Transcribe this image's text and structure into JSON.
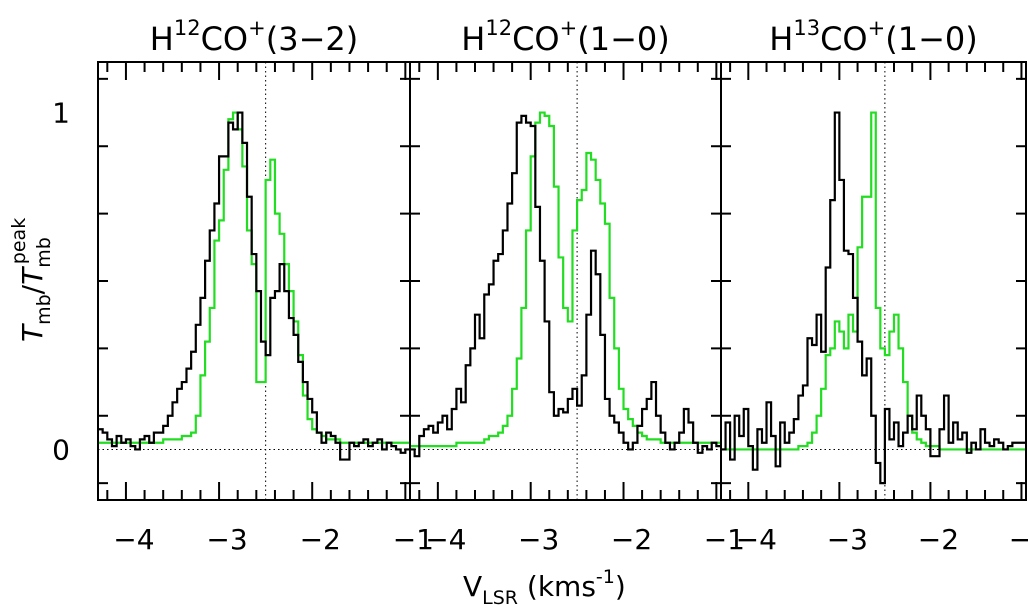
{
  "xlabel": {
    "base": "V",
    "sub": "LSR",
    "mid": " (kms",
    "sup": "-1",
    "end": ")"
  },
  "ylabel": {
    "t1": "T",
    "s1": "mb",
    "slash": "/",
    "t2": "T",
    "s2": "mb",
    "sup2": "peak"
  },
  "colors": {
    "observed": "#000000",
    "model": "#22dd22"
  },
  "chart_data": [
    {
      "type": "line",
      "panel_title": {
        "pre": "H",
        "iso": "12",
        "mol": "CO",
        "charge": "+",
        "transition": "(3−2)"
      },
      "xlim": [
        -4.3,
        -0.95
      ],
      "ylim": [
        -0.15,
        1.15
      ],
      "x_ticks": [
        "−4",
        "−3",
        "−2",
        "−1"
      ],
      "x_tick_values": [
        -4,
        -3,
        -2,
        -1
      ],
      "y_ticks": [
        "0",
        "1"
      ],
      "y_tick_values": [
        0,
        1
      ],
      "vline": -2.5,
      "hline": 0,
      "series": [
        {
          "style": "observed-step",
          "x": [
            -4.3,
            -4.25,
            -4.2,
            -4.15,
            -4.1,
            -4.05,
            -4.0,
            -3.95,
            -3.9,
            -3.85,
            -3.8,
            -3.75,
            -3.7,
            -3.65,
            -3.6,
            -3.55,
            -3.5,
            -3.45,
            -3.4,
            -3.35,
            -3.3,
            -3.25,
            -3.2,
            -3.15,
            -3.1,
            -3.05,
            -3.0,
            -2.95,
            -2.9,
            -2.85,
            -2.8,
            -2.75,
            -2.7,
            -2.65,
            -2.6,
            -2.55,
            -2.5,
            -2.45,
            -2.4,
            -2.35,
            -2.3,
            -2.25,
            -2.2,
            -2.15,
            -2.1,
            -2.05,
            -2.0,
            -1.95,
            -1.9,
            -1.85,
            -1.8,
            -1.75,
            -1.7,
            -1.65,
            -1.6,
            -1.55,
            -1.5,
            -1.45,
            -1.4,
            -1.35,
            -1.3,
            -1.25,
            -1.2,
            -1.15,
            -1.1,
            -1.05,
            -1.0
          ],
          "y": [
            0.06,
            0.05,
            0.03,
            0.01,
            0.04,
            0.02,
            0.03,
            0.01,
            0.0,
            0.03,
            0.04,
            0.02,
            0.05,
            0.05,
            0.07,
            0.1,
            0.14,
            0.18,
            0.2,
            0.24,
            0.29,
            0.37,
            0.45,
            0.56,
            0.65,
            0.73,
            0.87,
            0.87,
            0.97,
            0.95,
            1.0,
            0.91,
            0.75,
            0.58,
            0.47,
            0.32,
            0.28,
            0.45,
            0.47,
            0.55,
            0.47,
            0.39,
            0.34,
            0.26,
            0.2,
            0.15,
            0.11,
            0.05,
            0.02,
            0.05,
            0.04,
            0.02,
            -0.03,
            -0.03,
            0.02,
            0.01,
            0.02,
            0.03,
            0.01,
            0.02,
            0.03,
            0.0,
            0.02,
            0.01,
            0.0,
            -0.01,
            0.0
          ]
        },
        {
          "style": "model-step",
          "x": [
            -4.3,
            -4.2,
            -4.1,
            -4.0,
            -3.9,
            -3.8,
            -3.7,
            -3.6,
            -3.5,
            -3.45,
            -3.4,
            -3.35,
            -3.3,
            -3.25,
            -3.2,
            -3.15,
            -3.1,
            -3.05,
            -3.0,
            -2.95,
            -2.9,
            -2.85,
            -2.8,
            -2.75,
            -2.7,
            -2.65,
            -2.6,
            -2.55,
            -2.5,
            -2.45,
            -2.4,
            -2.35,
            -2.3,
            -2.25,
            -2.2,
            -2.15,
            -2.1,
            -2.05,
            -2.0,
            -1.95,
            -1.9,
            -1.85,
            -1.8,
            -1.7,
            -1.6,
            -1.5,
            -1.4,
            -1.3,
            -1.2,
            -1.1,
            -1.0
          ],
          "y": [
            0.02,
            0.02,
            0.02,
            0.02,
            0.02,
            0.02,
            0.02,
            0.03,
            0.03,
            0.03,
            0.04,
            0.04,
            0.05,
            0.1,
            0.22,
            0.32,
            0.42,
            0.62,
            0.68,
            0.83,
            0.98,
            1.0,
            0.95,
            0.84,
            0.65,
            0.55,
            0.2,
            0.2,
            0.8,
            0.86,
            0.7,
            0.64,
            0.55,
            0.47,
            0.38,
            0.28,
            0.16,
            0.09,
            0.06,
            0.05,
            0.04,
            0.03,
            0.03,
            0.02,
            0.02,
            0.02,
            0.02,
            0.02,
            0.02,
            0.02,
            0.02
          ]
        }
      ]
    },
    {
      "type": "line",
      "panel_title": {
        "pre": "H",
        "iso": "12",
        "mol": "CO",
        "charge": "+",
        "transition": "(1−0)"
      },
      "xlim": [
        -4.3,
        -0.95
      ],
      "ylim": [
        -0.15,
        1.15
      ],
      "x_ticks": [
        "−4",
        "−3",
        "−2",
        "−1"
      ],
      "x_tick_values": [
        -4,
        -3,
        -2,
        -1
      ],
      "y_ticks": [],
      "y_tick_values": [
        0,
        1
      ],
      "vline": -2.5,
      "hline": 0,
      "series": [
        {
          "style": "observed-step",
          "x": [
            -4.3,
            -4.25,
            -4.2,
            -4.15,
            -4.1,
            -4.05,
            -4.0,
            -3.95,
            -3.9,
            -3.85,
            -3.8,
            -3.75,
            -3.7,
            -3.65,
            -3.6,
            -3.55,
            -3.5,
            -3.45,
            -3.4,
            -3.35,
            -3.3,
            -3.25,
            -3.2,
            -3.15,
            -3.1,
            -3.05,
            -3.0,
            -2.95,
            -2.9,
            -2.85,
            -2.8,
            -2.75,
            -2.7,
            -2.65,
            -2.6,
            -2.55,
            -2.5,
            -2.45,
            -2.4,
            -2.35,
            -2.3,
            -2.25,
            -2.2,
            -2.15,
            -2.1,
            -2.05,
            -2.0,
            -1.95,
            -1.9,
            -1.85,
            -1.8,
            -1.75,
            -1.7,
            -1.65,
            -1.6,
            -1.55,
            -1.5,
            -1.45,
            -1.4,
            -1.35,
            -1.3,
            -1.25,
            -1.2,
            -1.15,
            -1.1,
            -1.05,
            -1.0
          ],
          "y": [
            0.0,
            -0.02,
            0.04,
            0.06,
            0.07,
            0.05,
            0.08,
            0.1,
            0.06,
            0.12,
            0.18,
            0.14,
            0.25,
            0.3,
            0.4,
            0.33,
            0.46,
            0.49,
            0.56,
            0.58,
            0.65,
            0.73,
            0.82,
            0.97,
            0.99,
            0.97,
            0.96,
            0.72,
            0.56,
            0.38,
            0.17,
            0.1,
            0.12,
            0.11,
            0.15,
            0.18,
            0.13,
            0.22,
            0.4,
            0.59,
            0.52,
            0.34,
            0.15,
            0.1,
            0.08,
            0.05,
            0.02,
            0.0,
            0.02,
            0.07,
            0.12,
            0.15,
            0.2,
            0.1,
            0.05,
            0.02,
            0.0,
            0.02,
            0.05,
            0.12,
            0.08,
            0.02,
            -0.01,
            0.01,
            0.0,
            0.02,
            0.01
          ]
        },
        {
          "style": "model-step",
          "x": [
            -4.3,
            -4.2,
            -4.1,
            -4.0,
            -3.9,
            -3.8,
            -3.7,
            -3.6,
            -3.5,
            -3.45,
            -3.4,
            -3.35,
            -3.3,
            -3.25,
            -3.2,
            -3.15,
            -3.1,
            -3.05,
            -3.0,
            -2.95,
            -2.9,
            -2.85,
            -2.8,
            -2.75,
            -2.7,
            -2.65,
            -2.6,
            -2.55,
            -2.5,
            -2.45,
            -2.4,
            -2.35,
            -2.3,
            -2.25,
            -2.2,
            -2.15,
            -2.1,
            -2.05,
            -2.0,
            -1.95,
            -1.9,
            -1.85,
            -1.8,
            -1.75,
            -1.7,
            -1.6,
            -1.5,
            -1.4,
            -1.3,
            -1.2,
            -1.1,
            -1.0
          ],
          "y": [
            0.01,
            0.01,
            0.01,
            0.01,
            0.01,
            0.02,
            0.02,
            0.02,
            0.03,
            0.04,
            0.04,
            0.05,
            0.07,
            0.1,
            0.18,
            0.27,
            0.42,
            0.65,
            0.87,
            0.97,
            1.0,
            0.99,
            0.96,
            0.78,
            0.57,
            0.42,
            0.38,
            0.65,
            0.74,
            0.77,
            0.88,
            0.86,
            0.8,
            0.73,
            0.67,
            0.45,
            0.3,
            0.18,
            0.12,
            0.09,
            0.07,
            0.05,
            0.04,
            0.03,
            0.03,
            0.02,
            0.02,
            0.02,
            0.02,
            0.02,
            0.02,
            0.02
          ]
        }
      ]
    },
    {
      "type": "line",
      "panel_title": {
        "pre": "H",
        "iso": "13",
        "mol": "CO",
        "charge": "+",
        "transition": "(1−0)"
      },
      "xlim": [
        -4.3,
        -0.95
      ],
      "ylim": [
        -0.15,
        1.15
      ],
      "x_ticks": [
        "−4",
        "−3",
        "−2",
        "−1"
      ],
      "x_tick_values": [
        -4,
        -3,
        -2,
        -1
      ],
      "y_ticks": [],
      "y_tick_values": [
        0,
        1
      ],
      "vline": -2.5,
      "hline": 0,
      "series": [
        {
          "style": "observed-step",
          "x": [
            -4.3,
            -4.25,
            -4.2,
            -4.15,
            -4.1,
            -4.05,
            -4.0,
            -3.95,
            -3.9,
            -3.85,
            -3.8,
            -3.75,
            -3.7,
            -3.65,
            -3.6,
            -3.55,
            -3.5,
            -3.45,
            -3.4,
            -3.35,
            -3.3,
            -3.25,
            -3.2,
            -3.15,
            -3.1,
            -3.05,
            -3.0,
            -2.95,
            -2.9,
            -2.85,
            -2.8,
            -2.75,
            -2.7,
            -2.65,
            -2.6,
            -2.55,
            -2.5,
            -2.45,
            -2.4,
            -2.35,
            -2.3,
            -2.25,
            -2.2,
            -2.15,
            -2.1,
            -2.05,
            -2.0,
            -1.95,
            -1.9,
            -1.85,
            -1.8,
            -1.75,
            -1.7,
            -1.65,
            -1.6,
            -1.55,
            -1.5,
            -1.45,
            -1.4,
            -1.35,
            -1.3,
            -1.25,
            -1.2,
            -1.15,
            -1.1,
            -1.05,
            -1.0
          ],
          "y": [
            0.0,
            0.08,
            -0.03,
            0.1,
            0.04,
            0.12,
            0.01,
            -0.06,
            0.06,
            0.02,
            0.14,
            0.04,
            -0.05,
            0.08,
            0.02,
            0.05,
            0.09,
            0.16,
            0.19,
            0.33,
            0.31,
            0.4,
            0.29,
            0.54,
            0.74,
            1.0,
            0.8,
            0.59,
            0.58,
            0.45,
            0.32,
            0.22,
            0.27,
            0.1,
            -0.04,
            -0.1,
            0.12,
            0.03,
            0.08,
            0.01,
            0.05,
            0.1,
            0.06,
            0.16,
            0.1,
            0.06,
            -0.02,
            -0.02,
            0.06,
            0.16,
            0.02,
            0.08,
            0.03,
            0.05,
            -0.01,
            0.02,
            0.0,
            0.06,
            0.02,
            0.01,
            0.03,
            0.02,
            0.0,
            0.01,
            0.02,
            0.02,
            0.02
          ]
        },
        {
          "style": "model-step",
          "x": [
            -4.3,
            -4.2,
            -4.1,
            -4.0,
            -3.9,
            -3.8,
            -3.7,
            -3.6,
            -3.5,
            -3.45,
            -3.4,
            -3.35,
            -3.3,
            -3.25,
            -3.2,
            -3.15,
            -3.1,
            -3.05,
            -3.0,
            -2.95,
            -2.9,
            -2.85,
            -2.8,
            -2.75,
            -2.7,
            -2.65,
            -2.6,
            -2.55,
            -2.5,
            -2.45,
            -2.4,
            -2.35,
            -2.3,
            -2.25,
            -2.2,
            -2.15,
            -2.1,
            -2.05,
            -2.0,
            -1.95,
            -1.9,
            -1.8,
            -1.7,
            -1.6,
            -1.5,
            -1.4,
            -1.3,
            -1.2,
            -1.1,
            -1.0
          ],
          "y": [
            0.0,
            0.0,
            0.0,
            0.0,
            0.0,
            0.0,
            0.0,
            0.0,
            0.0,
            0.01,
            0.01,
            0.02,
            0.05,
            0.1,
            0.18,
            0.28,
            0.3,
            0.38,
            0.35,
            0.3,
            0.4,
            0.35,
            0.6,
            0.75,
            0.75,
            1.0,
            0.42,
            0.3,
            0.28,
            0.35,
            0.4,
            0.3,
            0.2,
            0.1,
            0.05,
            0.03,
            0.02,
            0.01,
            0.01,
            0.01,
            0.0,
            0.0,
            0.0,
            0.0,
            0.0,
            0.0,
            0.0,
            0.0,
            0.0,
            0.0
          ]
        }
      ]
    }
  ]
}
